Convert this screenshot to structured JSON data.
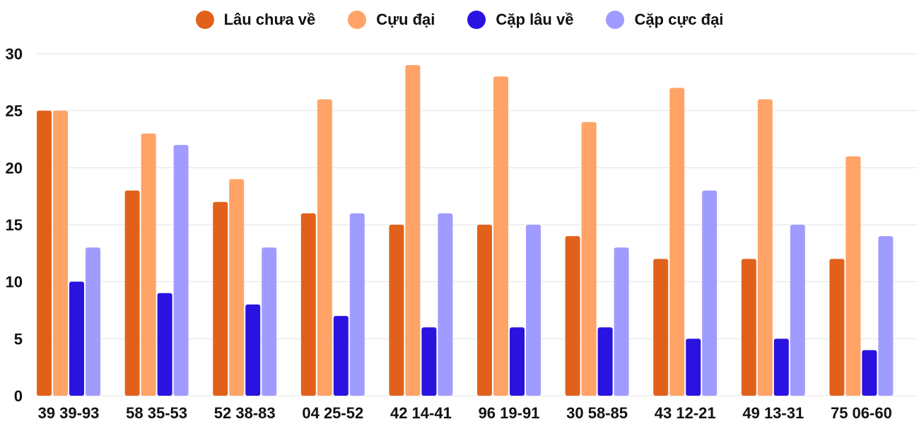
{
  "chart_data": {
    "type": "bar",
    "title": "",
    "xlabel": "",
    "ylabel": "",
    "ylim": [
      0,
      30
    ],
    "yticks": [
      0,
      5,
      10,
      15,
      20,
      25,
      30
    ],
    "grid": true,
    "legend_position": "top-center",
    "categories": [
      "39 39-93",
      "58 35-53",
      "52 38-83",
      "04 25-52",
      "42 14-41",
      "96 19-91",
      "30 58-85",
      "43 12-21",
      "49 13-31",
      "75 06-60"
    ],
    "series": [
      {
        "name": "Lâu chưa về",
        "color": "#e2611a",
        "values": [
          25,
          18,
          17,
          16,
          15,
          15,
          14,
          12,
          12,
          12
        ]
      },
      {
        "name": "Cựu đại",
        "color": "#ffa366",
        "values": [
          25,
          23,
          19,
          26,
          29,
          28,
          24,
          27,
          26,
          21
        ]
      },
      {
        "name": "Cặp lâu về",
        "color": "#2a12e0",
        "values": [
          10,
          9,
          8,
          7,
          6,
          6,
          6,
          5,
          5,
          4
        ]
      },
      {
        "name": "Cặp cực đại",
        "color": "#a09cff",
        "values": [
          13,
          22,
          13,
          16,
          16,
          15,
          13,
          18,
          15,
          14
        ]
      }
    ]
  }
}
